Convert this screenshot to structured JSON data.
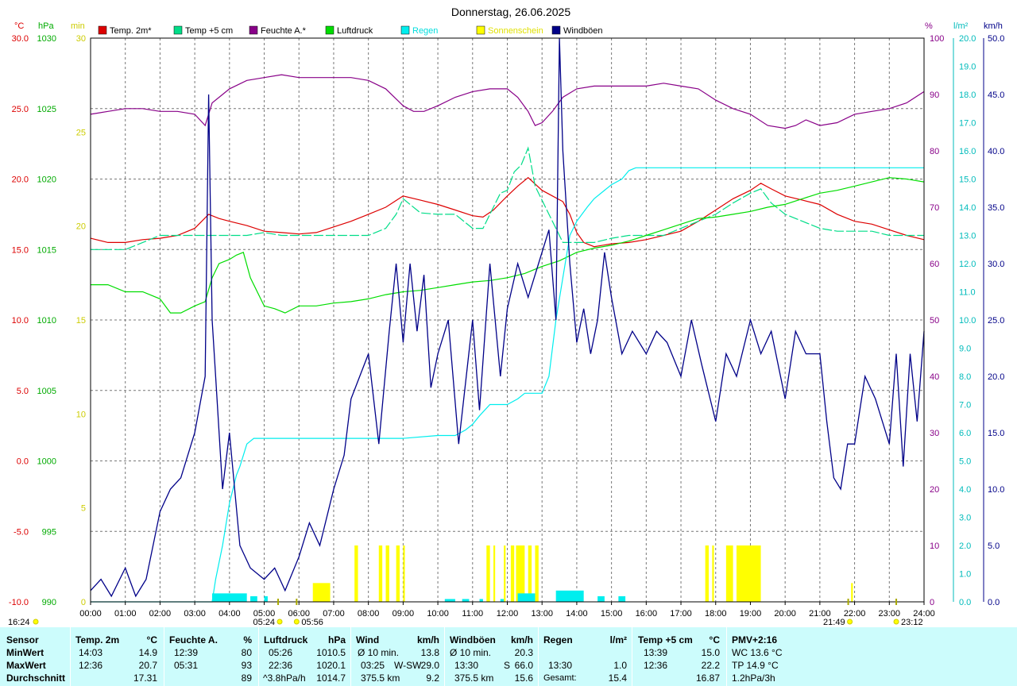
{
  "chart_data": {
    "type": "line",
    "title": "Donnerstag, 26.06.2025",
    "x_range": [
      "00:00",
      "24:00"
    ],
    "x_ticks": [
      "00:00",
      "01:00",
      "02:00",
      "03:00",
      "04:00",
      "05:00",
      "06:00",
      "07:00",
      "08:00",
      "09:00",
      "10:00",
      "11:00",
      "12:00",
      "13:00",
      "14:00",
      "15:00",
      "16:00",
      "17:00",
      "18:00",
      "19:00",
      "20:00",
      "21:00",
      "22:00",
      "23:00",
      "24:00"
    ],
    "grid": true,
    "legend": [
      {
        "name": "Temp. 2m*",
        "color": "#dd0000"
      },
      {
        "name": "Temp +5 cm",
        "color": "#00dd88"
      },
      {
        "name": "Feuchte A.*",
        "color": "#880088"
      },
      {
        "name": "Luftdruck",
        "color": "#00dd00"
      },
      {
        "name": "Regen",
        "color": "#00eeee"
      },
      {
        "name": "Sonnenschein",
        "color": "#ffff00"
      },
      {
        "name": "Windböen",
        "color": "#000088"
      }
    ],
    "axes": {
      "temp": {
        "unit": "°C",
        "range": [
          -10,
          30
        ],
        "ticks": [
          "-10.0",
          "-5.0",
          "0.0",
          "5.0",
          "10.0",
          "15.0",
          "20.0",
          "25.0",
          "30.0"
        ],
        "color": "#dd0000"
      },
      "pressure": {
        "unit": "hPa",
        "range": [
          990,
          1030
        ],
        "ticks": [
          "990",
          "995",
          "1000",
          "1005",
          "1010",
          "1015",
          "1020",
          "1025",
          "1030"
        ],
        "color": "#00aa00"
      },
      "sun": {
        "unit": "min",
        "range": [
          0,
          30
        ],
        "ticks": [
          "0",
          "5",
          "10",
          "15",
          "20",
          "25",
          "30"
        ],
        "color": "#cccc00"
      },
      "humidity": {
        "unit": "%",
        "range": [
          0,
          100
        ],
        "ticks": [
          "0",
          "10",
          "20",
          "30",
          "40",
          "50",
          "60",
          "70",
          "80",
          "90",
          "100"
        ],
        "color": "#880088"
      },
      "rain": {
        "unit": "l/m²",
        "range": [
          0,
          20
        ],
        "ticks": [
          "0.0",
          "1.0",
          "2.0",
          "3.0",
          "4.0",
          "5.0",
          "6.0",
          "7.0",
          "8.0",
          "9.0",
          "10.0",
          "11.0",
          "12.0",
          "13.0",
          "14.0",
          "15.0",
          "16.0",
          "17.0",
          "18.0",
          "19.0",
          "20.0"
        ],
        "color": "#00bbbb"
      },
      "wind": {
        "unit": "km/h",
        "range": [
          0,
          50
        ],
        "ticks": [
          "0.0",
          "5.0",
          "10.0",
          "15.0",
          "20.0",
          "25.0",
          "30.0",
          "35.0",
          "40.0",
          "45.0",
          "50.0"
        ],
        "color": "#000088"
      }
    },
    "series": [
      {
        "name": "Temp. 2m*",
        "axis": "temp",
        "x": [
          0,
          0.5,
          1,
          1.5,
          2,
          2.5,
          3,
          3.4,
          3.7,
          4,
          4.5,
          5,
          5.5,
          6,
          6.5,
          7,
          7.5,
          8,
          8.5,
          9,
          9.5,
          10,
          10.5,
          11,
          11.3,
          11.6,
          12,
          12.3,
          12.6,
          13,
          13.3,
          13.6,
          13.8,
          14,
          14.2,
          14.5,
          15,
          15.5,
          16,
          16.5,
          17,
          17.5,
          18,
          18.5,
          19,
          19.3,
          19.6,
          20,
          20.5,
          21,
          21.5,
          22,
          22.5,
          23,
          23.5,
          24
        ],
        "y": [
          15.8,
          15.5,
          15.5,
          15.7,
          15.8,
          16.0,
          16.5,
          17.5,
          17.2,
          17.0,
          16.7,
          16.3,
          16.2,
          16.1,
          16.2,
          16.6,
          17.0,
          17.5,
          18.0,
          18.8,
          18.5,
          18.2,
          17.8,
          17.4,
          17.3,
          17.8,
          18.8,
          19.5,
          20.1,
          19.2,
          18.8,
          18.4,
          17.5,
          16.2,
          15.5,
          15.2,
          15.4,
          15.5,
          15.7,
          16.0,
          16.3,
          17.0,
          17.8,
          18.6,
          19.2,
          19.7,
          19.3,
          18.8,
          18.5,
          18.2,
          17.5,
          17.0,
          16.8,
          16.4,
          16.0,
          15.7
        ]
      },
      {
        "name": "Temp +5 cm",
        "axis": "temp",
        "x": [
          0,
          0.5,
          1,
          1.5,
          2,
          2.5,
          3,
          3.5,
          4,
          4.5,
          5,
          5.5,
          6,
          6.5,
          7,
          7.5,
          8,
          8.5,
          8.8,
          9,
          9.2,
          9.5,
          10,
          10.5,
          11,
          11.3,
          11.5,
          11.8,
          12,
          12.2,
          12.4,
          12.6,
          12.8,
          13,
          13.2,
          13.4,
          13.6,
          13.8,
          14,
          14.5,
          15,
          15.5,
          16,
          16.5,
          17,
          17.5,
          18,
          18.5,
          19,
          19.3,
          19.6,
          20,
          20.5,
          21,
          21.5,
          22,
          22.5,
          23,
          23.5,
          24
        ],
        "y": [
          15.0,
          15.0,
          15.0,
          15.5,
          16.0,
          16.0,
          16.0,
          16.0,
          16.0,
          16.0,
          16.2,
          16.0,
          16.0,
          16.0,
          16.0,
          16.0,
          16.0,
          16.5,
          17.5,
          18.6,
          18.2,
          17.6,
          17.5,
          17.5,
          16.5,
          16.5,
          17.5,
          19.0,
          19.2,
          20.5,
          21.0,
          22.2,
          19.5,
          18.5,
          17.5,
          16.5,
          15.5,
          15.5,
          15.5,
          15.5,
          15.8,
          16.0,
          16.0,
          16.0,
          16.5,
          17.0,
          17.5,
          18.3,
          19.0,
          19.3,
          18.3,
          17.5,
          17.0,
          16.5,
          16.3,
          16.3,
          16.3,
          16.0,
          16.0,
          16.0
        ]
      },
      {
        "name": "Feuchte A.*",
        "axis": "humidity",
        "x": [
          0,
          0.5,
          1,
          1.5,
          2,
          2.5,
          3,
          3.3,
          3.5,
          3.8,
          4,
          4.5,
          5,
          5.5,
          6,
          6.5,
          7,
          7.5,
          8,
          8.5,
          9,
          9.3,
          9.6,
          10,
          10.5,
          11,
          11.5,
          12,
          12.3,
          12.6,
          12.8,
          13,
          13.3,
          13.6,
          14,
          14.5,
          15,
          15.5,
          16,
          16.5,
          17,
          17.5,
          18,
          18.5,
          19,
          19.5,
          20,
          20.3,
          20.6,
          21,
          21.5,
          22,
          22.5,
          23,
          23.5,
          24
        ],
        "y": [
          86.5,
          87,
          87.5,
          87.5,
          87,
          87,
          86.5,
          84.5,
          88.5,
          90,
          91,
          92.5,
          93,
          93.5,
          93,
          93,
          93,
          93,
          92.5,
          91,
          88,
          87,
          87,
          88,
          89.5,
          90.5,
          91,
          91,
          89.5,
          87,
          84.5,
          85,
          87,
          89.5,
          91,
          91.5,
          91.5,
          91.5,
          91.5,
          92,
          91.5,
          91,
          89,
          87.5,
          86.5,
          84.5,
          84,
          84.5,
          85.5,
          84.5,
          85,
          86.5,
          87,
          87.5,
          88.5,
          90.5
        ]
      },
      {
        "name": "Luftdruck",
        "axis": "pressure",
        "x": [
          0,
          0.5,
          1,
          1.5,
          2,
          2.3,
          2.6,
          3,
          3.3,
          3.5,
          3.7,
          4,
          4.2,
          4.4,
          4.6,
          5,
          5.3,
          5.6,
          6,
          6.5,
          7,
          7.5,
          8,
          8.5,
          9,
          9.5,
          10,
          10.5,
          11,
          11.5,
          12,
          12.5,
          13,
          13.5,
          14,
          14.5,
          15,
          15.5,
          16,
          16.5,
          17,
          17.5,
          18,
          18.5,
          19,
          19.5,
          20,
          20.5,
          21,
          21.5,
          22,
          22.5,
          23,
          23.5,
          24
        ],
        "y": [
          1012.5,
          1012.5,
          1012,
          1012,
          1011.5,
          1010.5,
          1010.5,
          1011,
          1011.3,
          1013,
          1014,
          1014.3,
          1014.6,
          1014.8,
          1013,
          1011,
          1010.8,
          1010.5,
          1011,
          1011,
          1011.2,
          1011.3,
          1011.5,
          1011.8,
          1012,
          1012.1,
          1012.3,
          1012.5,
          1012.7,
          1012.8,
          1013,
          1013.3,
          1013.8,
          1014.2,
          1014.8,
          1015.1,
          1015.3,
          1015.6,
          1016,
          1016.4,
          1016.8,
          1017.2,
          1017.3,
          1017.5,
          1017.7,
          1018,
          1018.2,
          1018.6,
          1019,
          1019.2,
          1019.5,
          1019.8,
          1020.1,
          1020,
          1019.8
        ]
      },
      {
        "name": "Regen",
        "axis": "rain",
        "x": [
          0,
          3.5,
          3.6,
          3.8,
          4,
          4.2,
          4.3,
          4.4,
          4.5,
          4.7,
          5,
          6,
          7,
          8,
          9,
          10,
          10.5,
          10.8,
          11,
          11.2,
          11.5,
          11.7,
          12,
          12.3,
          12.5,
          13,
          13.2,
          13.4,
          13.6,
          13.8,
          14,
          14.3,
          14.5,
          15,
          15.3,
          15.5,
          15.7,
          16,
          24
        ],
        "y": [
          0,
          0,
          0.8,
          2,
          3.5,
          4.5,
          4.8,
          5.2,
          5.6,
          5.8,
          5.8,
          5.8,
          5.8,
          5.8,
          5.8,
          5.9,
          5.9,
          6.1,
          6.3,
          6.6,
          7.0,
          7.0,
          7.0,
          7.2,
          7.4,
          7.4,
          8.0,
          10.0,
          11.5,
          13.0,
          13.5,
          14.0,
          14.3,
          14.8,
          15.0,
          15.3,
          15.4,
          15.4,
          15.4
        ]
      },
      {
        "name": "Windböen",
        "axis": "wind",
        "x": [
          0,
          0.3,
          0.6,
          1,
          1.3,
          1.6,
          2,
          2.3,
          2.6,
          3,
          3.3,
          3.4,
          3.5,
          3.6,
          3.8,
          4,
          4.3,
          4.6,
          5,
          5.3,
          5.6,
          6,
          6.3,
          6.6,
          7,
          7.3,
          7.5,
          8,
          8.3,
          8.6,
          8.8,
          9,
          9.2,
          9.4,
          9.6,
          9.8,
          10,
          10.3,
          10.6,
          11,
          11.2,
          11.5,
          11.8,
          12,
          12.3,
          12.6,
          12.9,
          13.2,
          13.4,
          13.5,
          13.6,
          13.8,
          14,
          14.2,
          14.4,
          14.6,
          14.8,
          15,
          15.3,
          15.6,
          16,
          16.3,
          16.6,
          17,
          17.3,
          17.6,
          18,
          18.3,
          18.6,
          19,
          19.3,
          19.6,
          20,
          20.3,
          20.6,
          21,
          21.2,
          21.4,
          21.6,
          21.8,
          22,
          22.3,
          22.6,
          23,
          23.2,
          23.4,
          23.6,
          23.8,
          24
        ],
        "y": [
          1,
          2,
          0.5,
          3,
          0.5,
          2,
          8,
          10,
          11,
          15,
          20,
          45,
          25,
          20,
          10,
          15,
          5,
          3,
          2,
          3,
          1,
          4,
          7,
          5,
          10,
          13,
          18,
          22,
          14,
          24,
          30,
          23,
          30,
          24,
          29,
          19,
          22,
          25,
          14,
          25,
          17,
          30,
          20,
          26,
          30,
          27,
          30,
          33,
          25,
          50,
          40,
          30,
          23,
          26,
          22,
          25,
          31,
          27,
          22,
          24,
          22,
          24,
          23,
          20,
          25,
          21,
          16,
          22,
          20,
          25,
          22,
          24,
          18,
          24,
          22,
          22,
          16,
          11,
          10,
          14,
          14,
          20,
          18,
          14,
          22,
          12,
          22,
          16,
          24
        ]
      },
      {
        "name": "Sonnenschein",
        "axis": "sun",
        "bars": [
          [
            6.4,
            6.9,
            1
          ],
          [
            7.6,
            7.7,
            3
          ],
          [
            8.3,
            8.4,
            3
          ],
          [
            8.5,
            8.6,
            3
          ],
          [
            8.8,
            8.9,
            3
          ],
          [
            9.0,
            9.05,
            3
          ],
          [
            11.4,
            11.5,
            3
          ],
          [
            11.6,
            11.65,
            3
          ],
          [
            11.9,
            11.95,
            3
          ],
          [
            12.1,
            12.2,
            3
          ],
          [
            12.25,
            12.5,
            3
          ],
          [
            12.6,
            12.7,
            3
          ],
          [
            12.8,
            12.9,
            3
          ],
          [
            17.7,
            17.8,
            3
          ],
          [
            17.9,
            17.95,
            3
          ],
          [
            18.3,
            18.5,
            3
          ],
          [
            18.6,
            19.3,
            3
          ],
          [
            21.9,
            21.95,
            1
          ]
        ]
      }
    ],
    "rain_bars": [
      [
        3.5,
        4.5,
        0.3
      ],
      [
        4.6,
        4.8,
        0.2
      ],
      [
        5.0,
        5.1,
        0.2
      ],
      [
        10.2,
        10.5,
        0.1
      ],
      [
        10.7,
        10.9,
        0.1
      ],
      [
        11.2,
        11.3,
        0.1
      ],
      [
        11.8,
        11.9,
        0.1
      ],
      [
        12.3,
        12.8,
        0.3
      ],
      [
        13.4,
        14.2,
        0.4
      ],
      [
        14.6,
        14.8,
        0.2
      ],
      [
        15.2,
        15.4,
        0.2
      ]
    ],
    "annotations": [
      {
        "text": "05:24",
        "x": "05:24"
      },
      {
        "text": "05:56",
        "x": "05:56"
      },
      {
        "text": "21:49",
        "x": "21:49"
      },
      {
        "text": "23:12",
        "x": "23:12"
      }
    ],
    "time_now": "16:24"
  },
  "stats": {
    "background": "#ccfcfc",
    "sensor": {
      "label": "Sensor",
      "rows": [
        "MinWert",
        "MaxWert",
        "Durchschnitt"
      ]
    },
    "temp2m": {
      "label": "Temp. 2m",
      "unit": "°C",
      "min_time": "14:03",
      "min_value": "14.9",
      "max_time": "12:36",
      "max_value": "20.7",
      "avg": "17.31"
    },
    "humidity": {
      "label": "Feuchte A.",
      "unit": "%",
      "min_time": "12:39",
      "min_value": "80",
      "max_time": "05:31",
      "max_value": "93",
      "avg": "89"
    },
    "pressure": {
      "label": "Luftdruck",
      "unit": "hPa",
      "min_time": "05:26",
      "min_value": "1010.5",
      "max_time": "22:36",
      "max_value": "1020.1",
      "trend": "^3.8hPa/h",
      "avg": "1014.7"
    },
    "wind": {
      "label": "Wind",
      "unit": "km/h",
      "r1_label": "Ø 10 min.",
      "r1_value": "13.8",
      "r2_time": "03:25",
      "r2_dir": "W-SW",
      "r2_value": "29.0",
      "r3_label": "375.5 km",
      "r3_value": "9.2"
    },
    "gusts": {
      "label": "Windböen",
      "unit": "km/h",
      "r1_label": "Ø 10 min.",
      "r1_value": "20.3",
      "r2_time": "13:30",
      "r2_dir": "S",
      "r2_value": "66.0",
      "r3_label": "375.5 km",
      "r3_value": "15.6"
    },
    "rain": {
      "label": "Regen",
      "unit": "l/m²",
      "max_time": "13:30",
      "max_value": "1.0",
      "total_label": "Gesamt:",
      "total_value": "15.4"
    },
    "temp5": {
      "label": "Temp +5 cm",
      "unit": "°C",
      "min_time": "13:39",
      "min_value": "15.0",
      "max_time": "12:36",
      "max_value": "22.2",
      "avg": "16.87"
    },
    "pmv": {
      "label": "PMV+2:16",
      "wc": "WC 13.6 °C",
      "tp": "TP 14.9 °C",
      "trend": "1.2hPa/3h"
    }
  }
}
